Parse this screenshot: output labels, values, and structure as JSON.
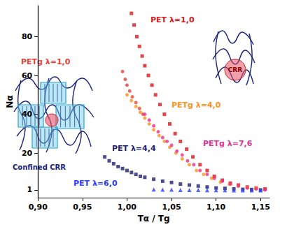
{
  "chart_data": {
    "type": "scatter",
    "x_label": "Tα / Tg",
    "y_label": "Nα",
    "xlim": [
      0.9,
      1.16
    ],
    "xticks": [
      {
        "value": 0.9,
        "label": "0,90"
      },
      {
        "value": 0.95,
        "label": "0,95"
      },
      {
        "value": 1.0,
        "label": "1,00"
      },
      {
        "value": 1.05,
        "label": "1,05"
      },
      {
        "value": 1.1,
        "label": "1,10"
      },
      {
        "value": 1.15,
        "label": "1,15"
      }
    ],
    "ylim": [
      -3,
      96
    ],
    "yticks": [
      1,
      20,
      40,
      60,
      80
    ],
    "grid": false,
    "annotations": [
      "CRR",
      "Confined CRR"
    ],
    "series": [
      {
        "name": "PET λ=1,0",
        "color": "#d7191c",
        "marker": "square",
        "x": [
          1.005,
          1.008,
          1.011,
          1.014,
          1.017,
          1.02,
          1.024,
          1.028,
          1.032,
          1.037,
          1.042,
          1.048,
          1.054,
          1.06,
          1.067,
          1.074,
          1.082,
          1.09,
          1.098,
          1.107,
          1.116,
          1.125,
          1.135,
          1.145,
          1.155
        ],
        "values": [
          92,
          86,
          80,
          75,
          70,
          65,
          60,
          55,
          50,
          45,
          40,
          35,
          30,
          26,
          22,
          18,
          14,
          11,
          8,
          6,
          4.5,
          3.5,
          2.5,
          2,
          1.5
        ]
      },
      {
        "name": "PETg λ=1,0",
        "color": "#e8403a",
        "marker": "circle",
        "x": [
          0.995,
          0.998,
          1.0,
          1.003,
          1.006,
          1.01,
          1.014,
          1.018
        ],
        "values": [
          62,
          58,
          55,
          52,
          49,
          46,
          43,
          40
        ]
      },
      {
        "name": "PETg λ=4,0",
        "color": "#f7931e",
        "marker": "circle",
        "x": [
          1.0,
          1.005,
          1.01,
          1.015,
          1.02,
          1.025,
          1.03,
          1.036,
          1.042,
          1.048,
          1.055,
          1.062,
          1.07,
          1.078,
          1.086,
          1.095,
          1.105,
          1.115,
          1.125,
          1.135,
          1.145
        ],
        "values": [
          50,
          47,
          44,
          41,
          38,
          35,
          32,
          29,
          26,
          23,
          20,
          17,
          14,
          11,
          9,
          7,
          5,
          4,
          3,
          2.5,
          2
        ]
      },
      {
        "name": "PETg λ=7,6",
        "color": "#ec2d8c",
        "marker": "circle",
        "x": [
          1.02,
          1.025,
          1.03,
          1.035,
          1.04,
          1.045,
          1.05,
          1.056,
          1.062,
          1.068,
          1.075,
          1.082,
          1.09,
          1.098,
          1.107,
          1.116,
          1.125,
          1.135,
          1.145,
          1.155
        ],
        "values": [
          40,
          37,
          34,
          31,
          28,
          26,
          24,
          21,
          19,
          16,
          14,
          11,
          9,
          7,
          5.5,
          4,
          3,
          2,
          1.5,
          1
        ]
      },
      {
        "name": "PET λ=4,4",
        "color": "#1f1f6e",
        "marker": "square",
        "x": [
          0.975,
          0.98,
          0.985,
          0.99,
          0.995,
          1.0,
          1.005,
          1.01,
          1.015,
          1.02,
          1.03,
          1.04,
          1.05,
          1.06,
          1.07,
          1.08,
          1.09,
          1.1,
          1.11,
          1.12,
          1.13,
          1.14,
          1.15
        ],
        "values": [
          18,
          16,
          14.5,
          13,
          12,
          11,
          10,
          9,
          8,
          7.5,
          6.5,
          5.5,
          4.8,
          4,
          3.5,
          3,
          2.5,
          2,
          1.8,
          1.5,
          1.3,
          1.2,
          1
        ]
      },
      {
        "name": "PET λ=6,0",
        "color": "#2a3cff",
        "marker": "triangle",
        "x": [
          1.03,
          1.04,
          1.05,
          1.06,
          1.07,
          1.08,
          1.09,
          1.1,
          1.11,
          1.12,
          1.13,
          1.14,
          1.15
        ],
        "values": [
          1.2,
          1.1,
          1.1,
          1.0,
          1.0,
          1.0,
          0.9,
          0.9,
          0.9,
          0.8,
          0.8,
          0.8,
          0.8
        ]
      }
    ]
  }
}
